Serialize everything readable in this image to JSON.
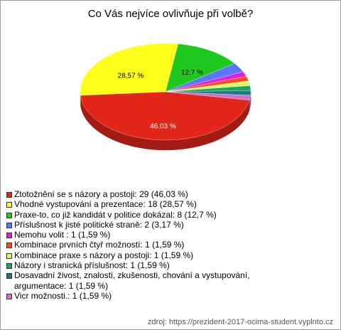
{
  "chart_data": {
    "type": "pie",
    "title": "Co Vás nejvíce ovlivňuje při volbě?",
    "categories": [
      "Ztotožnění se s názory a postoji: 29 (46,03 %)",
      "Vhodné vystupování a prezentace: 18 (28,57 %)",
      "Praxe-to, co již kandidát v politice dokázal: 8 (12,7 %)",
      "Příslušnost k jisté politické straně: 2 (3,17 %)",
      "Nemohu volit : 1 (1,59 %)",
      "Kombinace prvních čtyř možností: 1 (1,59 %)",
      "Kombinace praxe s názory a postoji: 1 (1,59 %)",
      "Názory i stranická příslušnost: 1 (1,59 %)",
      "Dosavadní živost, znalosti, zkušenosti, chování a vystupování, argumentace: 1 (1,59 %)",
      "Vicr možnosti.: 1 (1,59 %)"
    ],
    "values": [
      46.03,
      28.57,
      12.7,
      3.17,
      1.59,
      1.59,
      1.59,
      1.59,
      1.59,
      1.59
    ],
    "value_labels": [
      "46,03 %",
      "28,57 %",
      "12,7 %",
      null,
      null,
      null,
      null,
      null,
      null,
      null
    ],
    "colors": [
      "#e3261a",
      "#ffff1a",
      "#1fc81f",
      "#5a78ff",
      "#e21ee2",
      "#ff4a1a",
      "#ccff66",
      "#20a060",
      "#1f7a80",
      "#d070d0"
    ],
    "source": "zdroj: https://prezident-2017-ocima-student.vyplnto.cz"
  }
}
